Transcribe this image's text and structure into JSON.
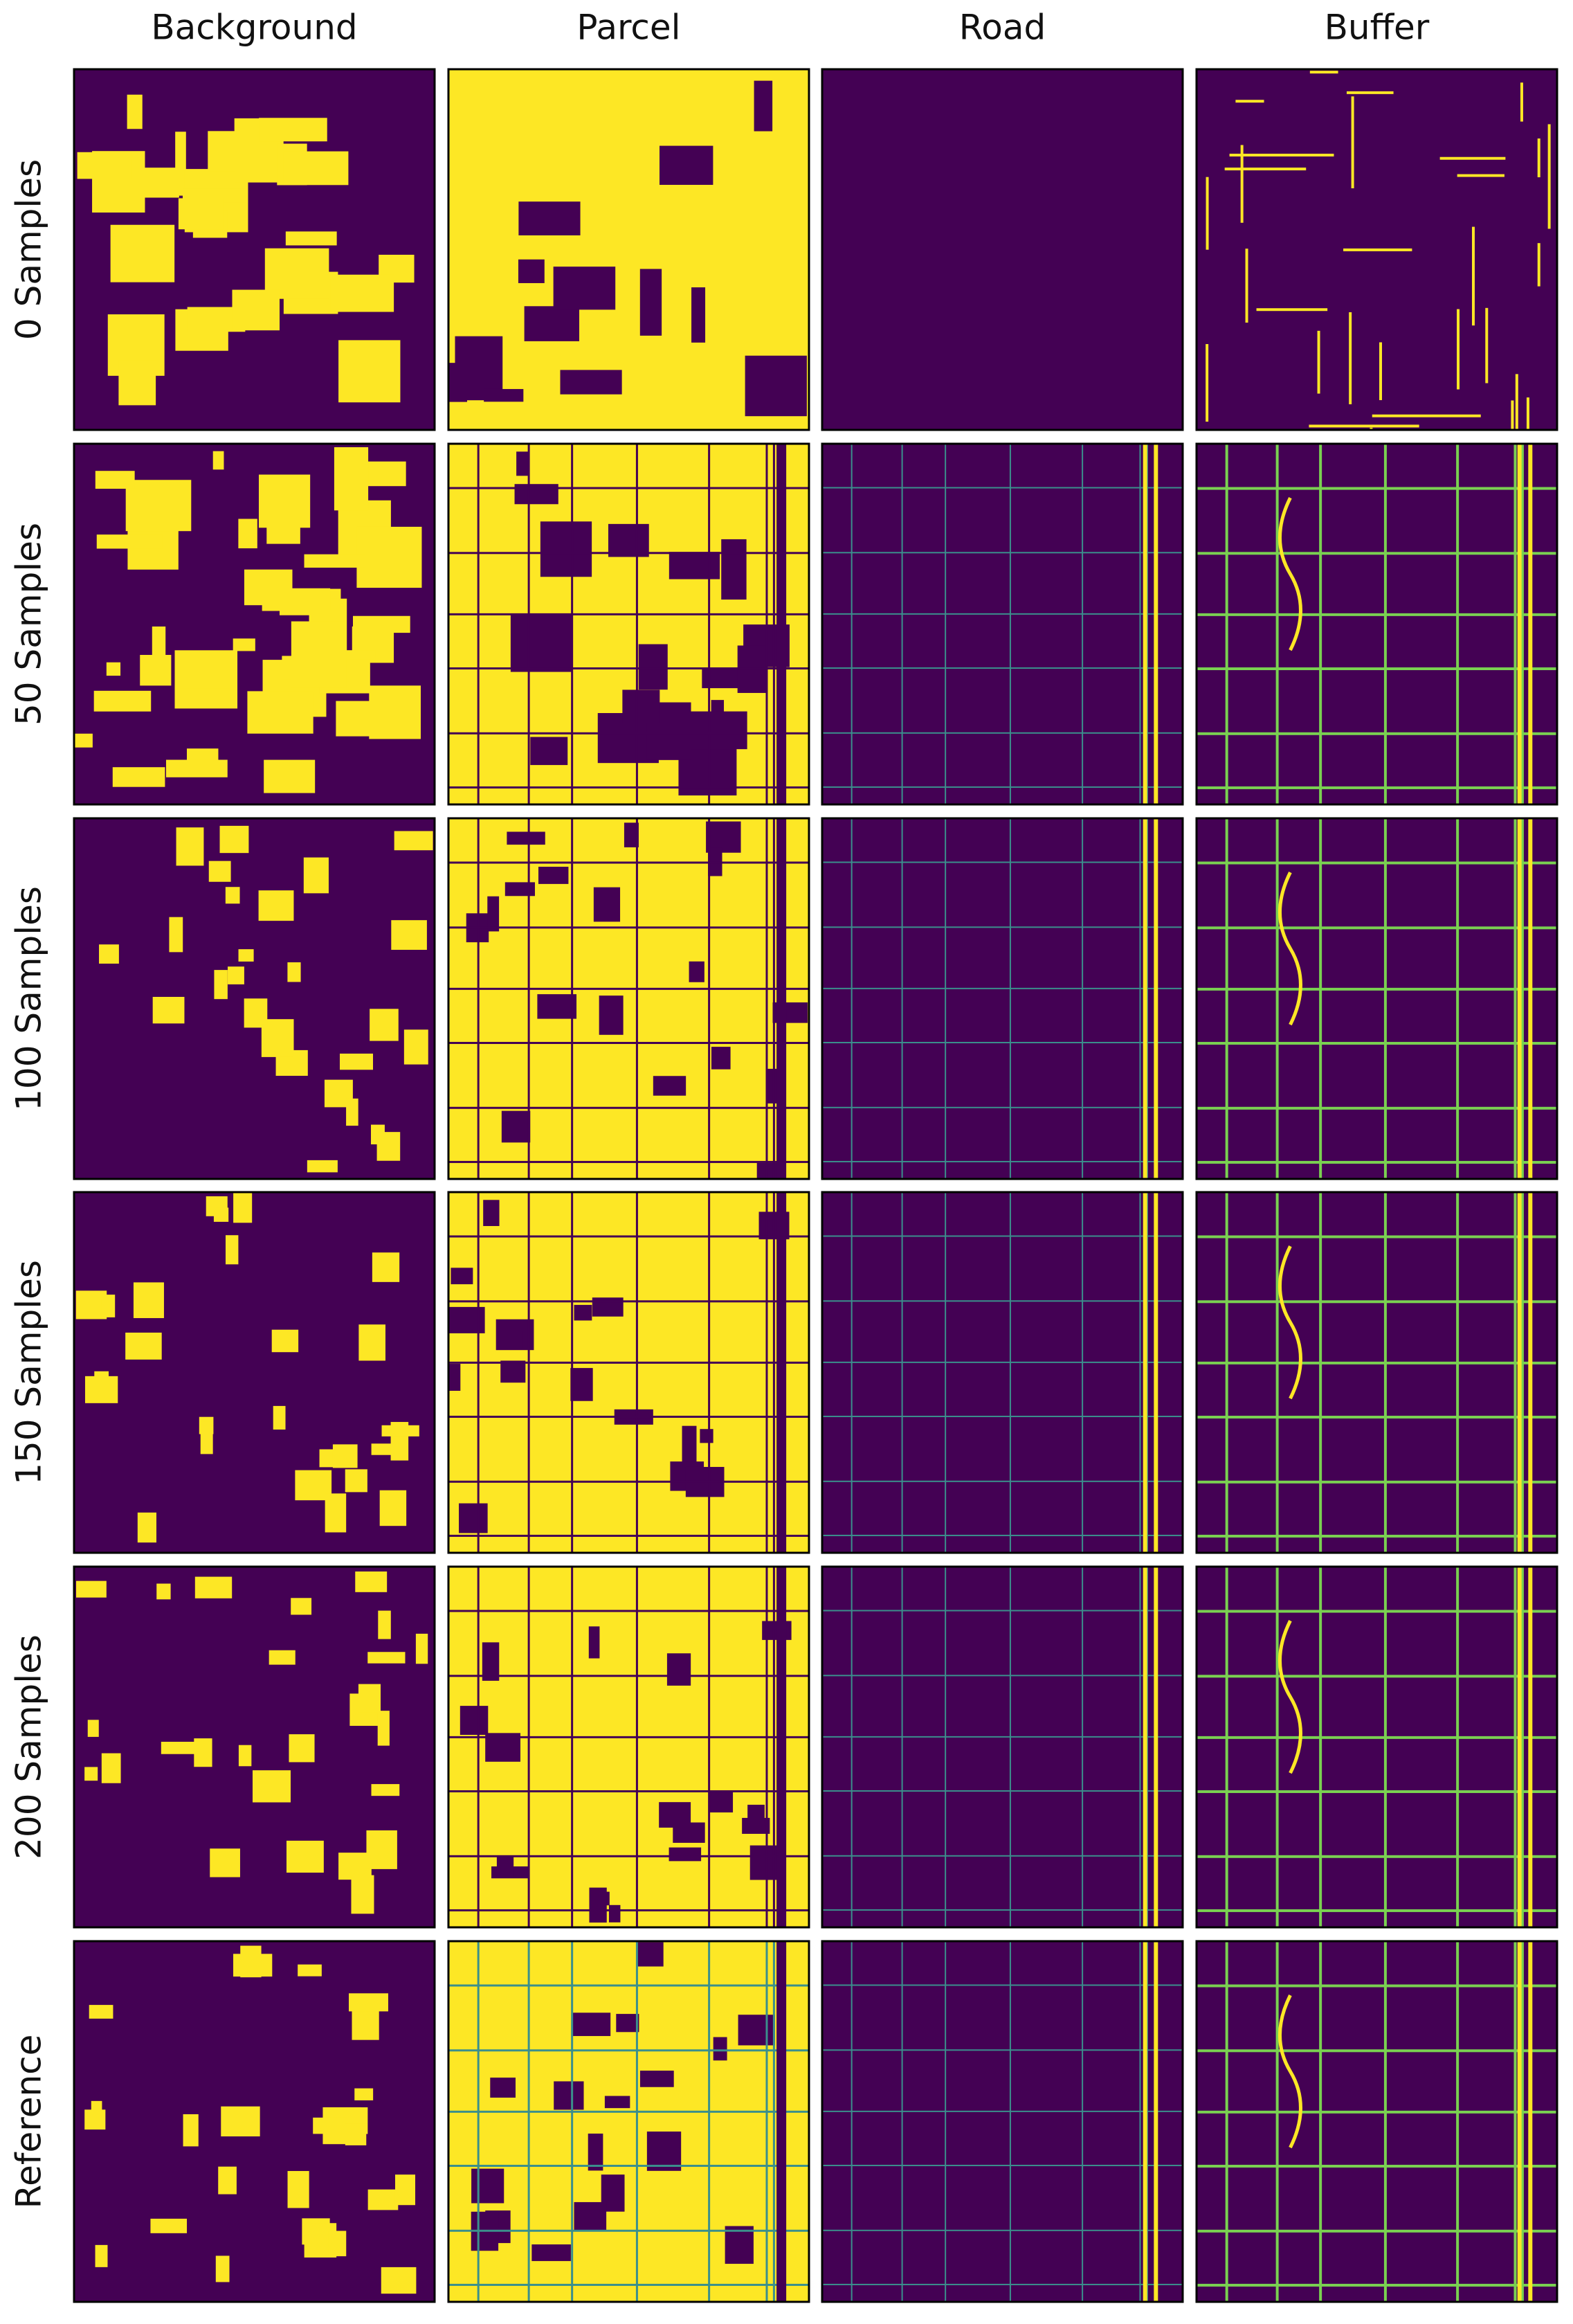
{
  "columns": [
    "Background",
    "Parcel",
    "Road",
    "Buffer"
  ],
  "rows": [
    "0 Samples",
    "50 Samples",
    "100 Samples",
    "150 Samples",
    "200 Samples",
    "Reference"
  ]
}
